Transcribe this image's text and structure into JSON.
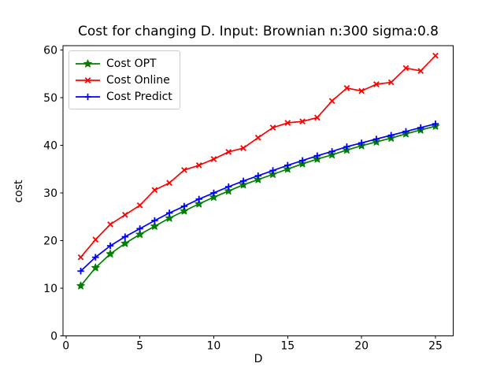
{
  "chart_data": {
    "type": "line",
    "title": "Cost for changing D. Input: Brownian n:300 sigma:0.8",
    "xlabel": "D",
    "ylabel": "cost",
    "xlim": [
      -0.2,
      26.2
    ],
    "ylim": [
      0,
      60.9
    ],
    "xticks": [
      0,
      5,
      10,
      15,
      20,
      25
    ],
    "yticks": [
      0,
      10,
      20,
      30,
      40,
      50,
      60
    ],
    "grid": false,
    "legend_position": "upper left",
    "x": [
      1,
      2,
      3,
      4,
      5,
      6,
      7,
      8,
      9,
      10,
      11,
      12,
      13,
      14,
      15,
      16,
      17,
      18,
      19,
      20,
      21,
      22,
      23,
      24,
      25
    ],
    "series": [
      {
        "name": "Cost OPT",
        "color": "#008000",
        "marker": "star",
        "values": [
          10.5,
          14.3,
          17.2,
          19.4,
          21.3,
          23.0,
          24.7,
          26.2,
          27.7,
          29.1,
          30.4,
          31.7,
          32.8,
          33.9,
          35.0,
          36.1,
          37.1,
          38.0,
          39.0,
          39.9,
          40.7,
          41.5,
          42.4,
          43.2,
          44.0
        ]
      },
      {
        "name": "Cost Online",
        "color": "#ff0000",
        "marker": "x",
        "values": [
          16.5,
          20.2,
          23.4,
          25.4,
          27.4,
          30.6,
          32.1,
          34.8,
          35.8,
          37.1,
          38.6,
          39.4,
          41.6,
          43.7,
          44.7,
          45.0,
          45.8,
          49.3,
          52.0,
          51.4,
          52.8,
          53.2,
          56.2,
          55.6,
          58.8
        ]
      },
      {
        "name": "Cost Predict",
        "color": "#0000ff",
        "marker": "plus",
        "values": [
          13.6,
          16.5,
          18.9,
          20.8,
          22.5,
          24.2,
          25.8,
          27.2,
          28.7,
          30.0,
          31.3,
          32.5,
          33.6,
          34.7,
          35.8,
          36.8,
          37.8,
          38.7,
          39.7,
          40.5,
          41.3,
          42.1,
          42.9,
          43.7,
          44.5
        ]
      }
    ]
  }
}
